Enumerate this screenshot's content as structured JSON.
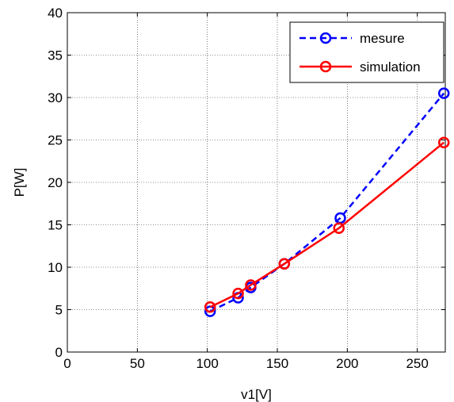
{
  "chart_data": {
    "type": "line",
    "xlabel": "v1[V]",
    "ylabel": "P[W]",
    "xlim": [
      0,
      270
    ],
    "ylim": [
      0,
      40
    ],
    "xticks": [
      0,
      50,
      100,
      150,
      200,
      250
    ],
    "yticks": [
      0,
      5,
      10,
      15,
      20,
      25,
      30,
      35,
      40
    ],
    "grid": true,
    "legend_position": "top-right",
    "series": [
      {
        "name": "mesure",
        "color": "#0000ff",
        "line_style": "dashed",
        "marker": "circle",
        "x": [
          102,
          122,
          131,
          155,
          195,
          269
        ],
        "y": [
          4.8,
          6.4,
          7.6,
          10.4,
          15.8,
          30.5
        ]
      },
      {
        "name": "simulation",
        "color": "#ff0000",
        "line_style": "solid",
        "marker": "circle",
        "x": [
          102,
          122,
          131,
          155,
          194,
          269
        ],
        "y": [
          5.3,
          6.9,
          7.9,
          10.4,
          14.6,
          24.7
        ]
      }
    ]
  }
}
